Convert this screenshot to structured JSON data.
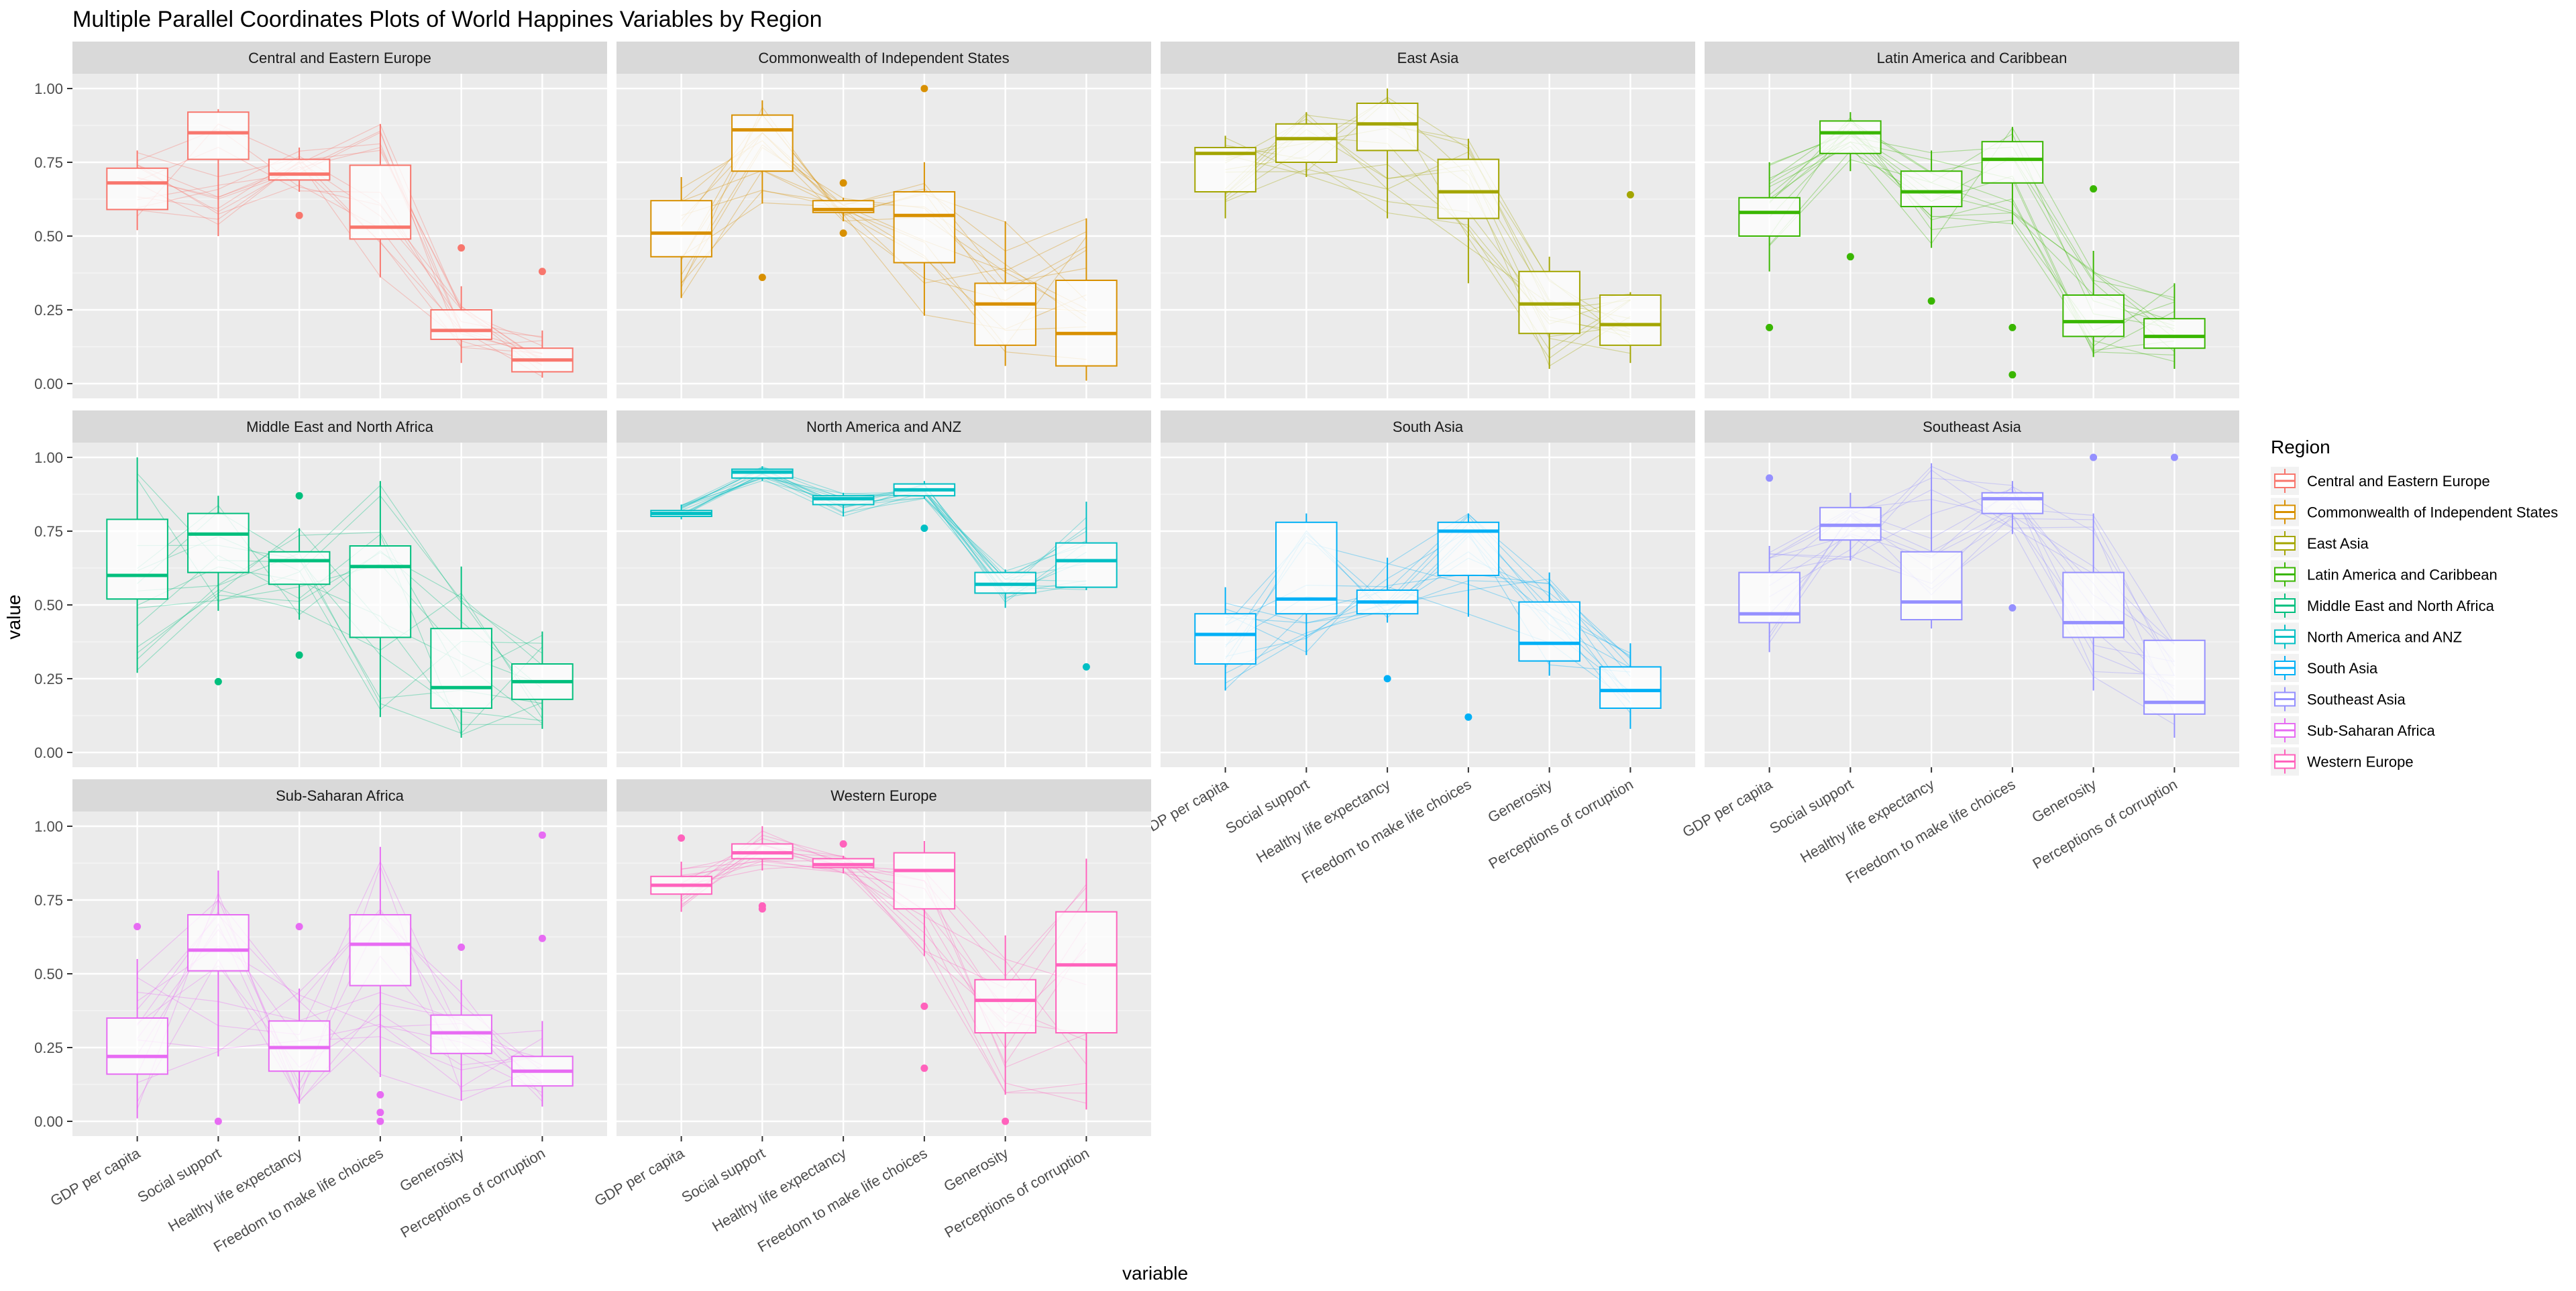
{
  "chart_data": {
    "type": "boxplot",
    "subtype": "faceted boxplot with parallel-coordinate lines",
    "title": "Multiple Parallel Coordinates Plots of World Happines Variables by Region",
    "xlabel": "variable",
    "ylabel": "value",
    "ylim": [
      0,
      1
    ],
    "y_ticks": [
      "0.00",
      "0.25",
      "0.50",
      "0.75",
      "1.00"
    ],
    "categories": [
      "GDP per capita",
      "Social support",
      "Healthy life expectancy",
      "Freedom to make life choices",
      "Generosity",
      "Perceptions of corruption"
    ],
    "grid": true,
    "legend_title": "Region",
    "legend_position": "right",
    "box_fields": [
      "min",
      "q1",
      "median",
      "q3",
      "max"
    ],
    "facets": [
      {
        "name": "Central and Eastern Europe",
        "color": "#F8766D",
        "boxes": [
          [
            0.52,
            0.59,
            0.68,
            0.73,
            0.79
          ],
          [
            0.5,
            0.76,
            0.85,
            0.92,
            0.93
          ],
          [
            0.65,
            0.69,
            0.71,
            0.76,
            0.8
          ],
          [
            0.36,
            0.49,
            0.53,
            0.74,
            0.88
          ],
          [
            0.07,
            0.15,
            0.18,
            0.25,
            0.33
          ],
          [
            0.02,
            0.04,
            0.08,
            0.12,
            0.18
          ]
        ],
        "outliers": [
          [
            2,
            0.57
          ],
          [
            4,
            0.46
          ],
          [
            5,
            0.38
          ]
        ]
      },
      {
        "name": "Commonwealth of Independent States",
        "color": "#D89000",
        "boxes": [
          [
            0.29,
            0.43,
            0.51,
            0.62,
            0.7
          ],
          [
            0.61,
            0.72,
            0.86,
            0.91,
            0.96
          ],
          [
            0.55,
            0.58,
            0.59,
            0.62,
            0.63
          ],
          [
            0.23,
            0.41,
            0.57,
            0.65,
            0.75
          ],
          [
            0.06,
            0.13,
            0.27,
            0.34,
            0.55
          ],
          [
            0.01,
            0.06,
            0.17,
            0.35,
            0.56
          ]
        ],
        "outliers": [
          [
            1,
            0.36
          ],
          [
            2,
            0.68
          ],
          [
            2,
            0.51
          ],
          [
            3,
            1.0
          ]
        ]
      },
      {
        "name": "East Asia",
        "color": "#A3A500",
        "boxes": [
          [
            0.56,
            0.65,
            0.78,
            0.8,
            0.84
          ],
          [
            0.7,
            0.75,
            0.83,
            0.88,
            0.92
          ],
          [
            0.56,
            0.79,
            0.88,
            0.95,
            1.0
          ],
          [
            0.34,
            0.56,
            0.65,
            0.76,
            0.83
          ],
          [
            0.05,
            0.17,
            0.27,
            0.38,
            0.43
          ],
          [
            0.07,
            0.13,
            0.2,
            0.3,
            0.31
          ]
        ],
        "outliers": [
          [
            5,
            0.64
          ]
        ]
      },
      {
        "name": "Latin America and Caribbean",
        "color": "#39B600",
        "boxes": [
          [
            0.38,
            0.5,
            0.58,
            0.63,
            0.75
          ],
          [
            0.72,
            0.78,
            0.85,
            0.89,
            0.92
          ],
          [
            0.46,
            0.6,
            0.65,
            0.72,
            0.79
          ],
          [
            0.54,
            0.68,
            0.76,
            0.82,
            0.87
          ],
          [
            0.09,
            0.16,
            0.21,
            0.3,
            0.45
          ],
          [
            0.05,
            0.12,
            0.16,
            0.22,
            0.34
          ]
        ],
        "outliers": [
          [
            0,
            0.19
          ],
          [
            1,
            0.43
          ],
          [
            2,
            0.28
          ],
          [
            3,
            0.19
          ],
          [
            3,
            0.03
          ],
          [
            4,
            0.66
          ]
        ]
      },
      {
        "name": "Middle East and North Africa",
        "color": "#00BF7D",
        "boxes": [
          [
            0.27,
            0.52,
            0.6,
            0.79,
            1.0
          ],
          [
            0.48,
            0.61,
            0.74,
            0.81,
            0.87
          ],
          [
            0.45,
            0.57,
            0.65,
            0.68,
            0.76
          ],
          [
            0.12,
            0.39,
            0.63,
            0.7,
            0.92
          ],
          [
            0.05,
            0.15,
            0.22,
            0.42,
            0.63
          ],
          [
            0.08,
            0.18,
            0.24,
            0.3,
            0.41
          ]
        ],
        "outliers": [
          [
            1,
            0.24
          ],
          [
            2,
            0.87
          ],
          [
            2,
            0.33
          ]
        ]
      },
      {
        "name": "North America and ANZ",
        "color": "#00BFC4",
        "boxes": [
          [
            0.79,
            0.8,
            0.81,
            0.82,
            0.84
          ],
          [
            0.92,
            0.93,
            0.95,
            0.96,
            0.97
          ],
          [
            0.8,
            0.84,
            0.86,
            0.87,
            0.88
          ],
          [
            0.86,
            0.87,
            0.89,
            0.91,
            0.92
          ],
          [
            0.49,
            0.54,
            0.57,
            0.61,
            0.62
          ],
          [
            0.55,
            0.56,
            0.65,
            0.71,
            0.85
          ]
        ],
        "outliers": [
          [
            3,
            0.76
          ],
          [
            5,
            0.29
          ]
        ]
      },
      {
        "name": "South Asia",
        "color": "#00B0F6",
        "boxes": [
          [
            0.21,
            0.3,
            0.4,
            0.47,
            0.56
          ],
          [
            0.33,
            0.47,
            0.52,
            0.78,
            0.81
          ],
          [
            0.44,
            0.47,
            0.51,
            0.55,
            0.66
          ],
          [
            0.46,
            0.6,
            0.75,
            0.78,
            0.81
          ],
          [
            0.26,
            0.31,
            0.37,
            0.51,
            0.61
          ],
          [
            0.08,
            0.15,
            0.21,
            0.29,
            0.37
          ]
        ],
        "outliers": [
          [
            2,
            0.25
          ],
          [
            3,
            0.12
          ]
        ]
      },
      {
        "name": "Southeast Asia",
        "color": "#9590FF",
        "boxes": [
          [
            0.34,
            0.44,
            0.47,
            0.61,
            0.7
          ],
          [
            0.65,
            0.72,
            0.77,
            0.83,
            0.88
          ],
          [
            0.42,
            0.45,
            0.51,
            0.68,
            0.98
          ],
          [
            0.74,
            0.81,
            0.86,
            0.88,
            0.92
          ],
          [
            0.21,
            0.39,
            0.44,
            0.61,
            0.81
          ],
          [
            0.05,
            0.13,
            0.17,
            0.38,
            0.38
          ]
        ],
        "outliers": [
          [
            0,
            0.93
          ],
          [
            3,
            0.49
          ],
          [
            4,
            1.0
          ],
          [
            5,
            1.0
          ]
        ]
      },
      {
        "name": "Sub-Saharan Africa",
        "color": "#E76BF3",
        "boxes": [
          [
            0.01,
            0.16,
            0.22,
            0.35,
            0.55
          ],
          [
            0.22,
            0.51,
            0.58,
            0.7,
            0.85
          ],
          [
            0.06,
            0.17,
            0.25,
            0.34,
            0.45
          ],
          [
            0.15,
            0.46,
            0.6,
            0.7,
            0.93
          ],
          [
            0.07,
            0.23,
            0.3,
            0.36,
            0.48
          ],
          [
            0.05,
            0.12,
            0.17,
            0.22,
            0.34
          ]
        ],
        "outliers": [
          [
            0,
            0.66
          ],
          [
            1,
            0.0
          ],
          [
            2,
            0.66
          ],
          [
            3,
            0.09
          ],
          [
            3,
            0.03
          ],
          [
            3,
            0.0
          ],
          [
            4,
            0.59
          ],
          [
            5,
            0.97
          ],
          [
            5,
            0.62
          ]
        ]
      },
      {
        "name": "Western Europe",
        "color": "#FF62BC",
        "boxes": [
          [
            0.71,
            0.77,
            0.8,
            0.83,
            0.88
          ],
          [
            0.85,
            0.89,
            0.91,
            0.94,
            1.0
          ],
          [
            0.84,
            0.86,
            0.87,
            0.89,
            0.9
          ],
          [
            0.56,
            0.72,
            0.85,
            0.91,
            0.95
          ],
          [
            0.09,
            0.3,
            0.41,
            0.48,
            0.63
          ],
          [
            0.04,
            0.3,
            0.53,
            0.71,
            0.89
          ]
        ],
        "outliers": [
          [
            0,
            0.96
          ],
          [
            1,
            0.73
          ],
          [
            1,
            0.72
          ],
          [
            2,
            0.94
          ],
          [
            3,
            0.39
          ],
          [
            3,
            0.18
          ],
          [
            4,
            0.0
          ]
        ]
      }
    ],
    "legend": [
      {
        "label": "Central and Eastern Europe",
        "color": "#F8766D"
      },
      {
        "label": "Commonwealth of Independent States",
        "color": "#D89000"
      },
      {
        "label": "East Asia",
        "color": "#A3A500"
      },
      {
        "label": "Latin America and Caribbean",
        "color": "#39B600"
      },
      {
        "label": "Middle East and North Africa",
        "color": "#00BF7D"
      },
      {
        "label": "North America and ANZ",
        "color": "#00BFC4"
      },
      {
        "label": "South Asia",
        "color": "#00B0F6"
      },
      {
        "label": "Southeast Asia",
        "color": "#9590FF"
      },
      {
        "label": "Sub-Saharan Africa",
        "color": "#E76BF3"
      },
      {
        "label": "Western Europe",
        "color": "#FF62BC"
      }
    ]
  }
}
